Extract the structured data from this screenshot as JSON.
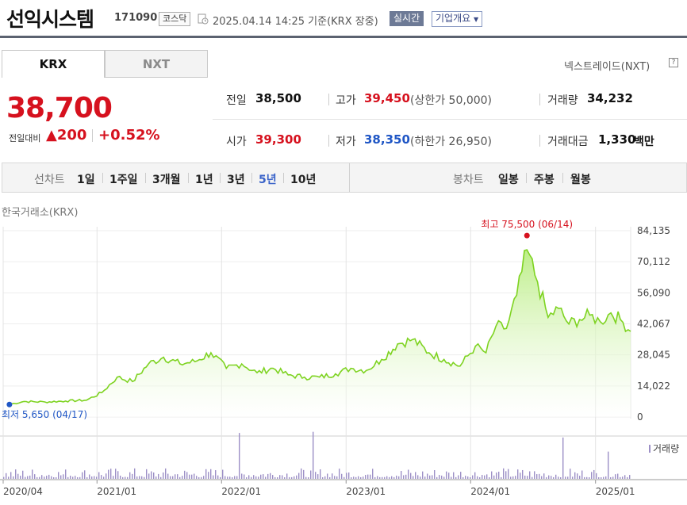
{
  "header": {
    "name": "선익시스템",
    "code": "171090",
    "market": "코스닥",
    "as_of": "2025.04.14 14:25  기준(KRX 장중)",
    "realtime": "실시간",
    "overview": "기업개요"
  },
  "tabs": [
    "KRX",
    "NXT"
  ],
  "nxt_link": "넥스트레이드(NXT)",
  "price": {
    "current": "38,700",
    "change_label": "전일대비",
    "change": "200",
    "change_pct": "+0.52%"
  },
  "quotes": {
    "prev_label": "전일",
    "prev": "38,500",
    "high_label": "고가",
    "high": "39,450",
    "upper_limit": "(상한가 50,000)",
    "volume_label": "거래량",
    "volume": "34,232",
    "open_label": "시가",
    "open": "39,300",
    "low_label": "저가",
    "low": "38,350",
    "lower_limit": "(하한가 26,950)",
    "amount_label": "거래대금",
    "amount": "1,330",
    "amount_unit": "백만"
  },
  "period_bar": {
    "line_label": "선차트",
    "line_options": [
      "1일",
      "1주일",
      "3개월",
      "1년",
      "3년",
      "5년",
      "10년"
    ],
    "active": "5년",
    "candle_label": "봉차트",
    "candle_options": [
      "일봉",
      "주봉",
      "월봉"
    ]
  },
  "exchange_label": "한국거래소(KRX)",
  "colors": {
    "up": "#d6111e",
    "down": "#1f56c5",
    "line": "#7ed321",
    "fill": "#c9f09a",
    "volume": "#9c8fc6"
  },
  "chart_data": {
    "type": "area",
    "ylim": [
      0,
      84135
    ],
    "y_ticks": [
      "84,135",
      "70,112",
      "56,090",
      "42,067",
      "28,045",
      "14,022",
      "0"
    ],
    "y_tick_values": [
      84135,
      70112,
      56090,
      42067,
      28045,
      14022,
      0
    ],
    "x_ticks": [
      "2020/04",
      "2021/01",
      "2022/01",
      "2023/01",
      "2024/01",
      "2025/01"
    ],
    "x_tick_dates": [
      "2020-04-01",
      "2021-01-01",
      "2022-01-01",
      "2023-01-01",
      "2024-01-01",
      "2025-01-01"
    ],
    "x_range": [
      "2020-04-01",
      "2025-04-14"
    ],
    "max_annotation": "최고 75,500 (06/14)",
    "max_point": {
      "date": "2024-06-14",
      "value": 75500
    },
    "min_annotation": "최저 5,650 (04/17)",
    "min_point": {
      "date": "2020-04-17",
      "value": 5650
    },
    "volume_label": "거래량",
    "series": [
      {
        "x": [
          "2020-04-17",
          "2020-06-01",
          "2020-08-01",
          "2020-10-01",
          "2020-12-01",
          "2021-01-15",
          "2021-03-01",
          "2021-04-15",
          "2021-06-01",
          "2021-07-15",
          "2021-09-01",
          "2021-10-15",
          "2021-12-01",
          "2022-01-15",
          "2022-03-01",
          "2022-04-15",
          "2022-06-01",
          "2022-07-15",
          "2022-09-01",
          "2022-10-15",
          "2022-12-01",
          "2023-01-15",
          "2023-03-01",
          "2023-04-15",
          "2023-06-01",
          "2023-07-15",
          "2023-09-01",
          "2023-10-15",
          "2023-12-01",
          "2024-01-15",
          "2024-02-15",
          "2024-03-15",
          "2024-04-15",
          "2024-05-15",
          "2024-06-14",
          "2024-07-15",
          "2024-08-15",
          "2024-09-15",
          "2024-10-15",
          "2024-11-15",
          "2024-12-15",
          "2025-01-15",
          "2025-02-15",
          "2025-03-15",
          "2025-04-14"
        ],
        "values": [
          5650,
          7000,
          6800,
          7200,
          7600,
          11000,
          18000,
          16000,
          24000,
          27000,
          24000,
          25000,
          29000,
          22000,
          24000,
          20000,
          22000,
          19000,
          18000,
          18000,
          19500,
          22000,
          21000,
          26000,
          33000,
          35000,
          29000,
          26000,
          23000,
          32000,
          29000,
          41000,
          40000,
          55000,
          75500,
          61000,
          45000,
          49000,
          42000,
          44000,
          46000,
          43000,
          47000,
          44000,
          38700
        ]
      }
    ]
  }
}
